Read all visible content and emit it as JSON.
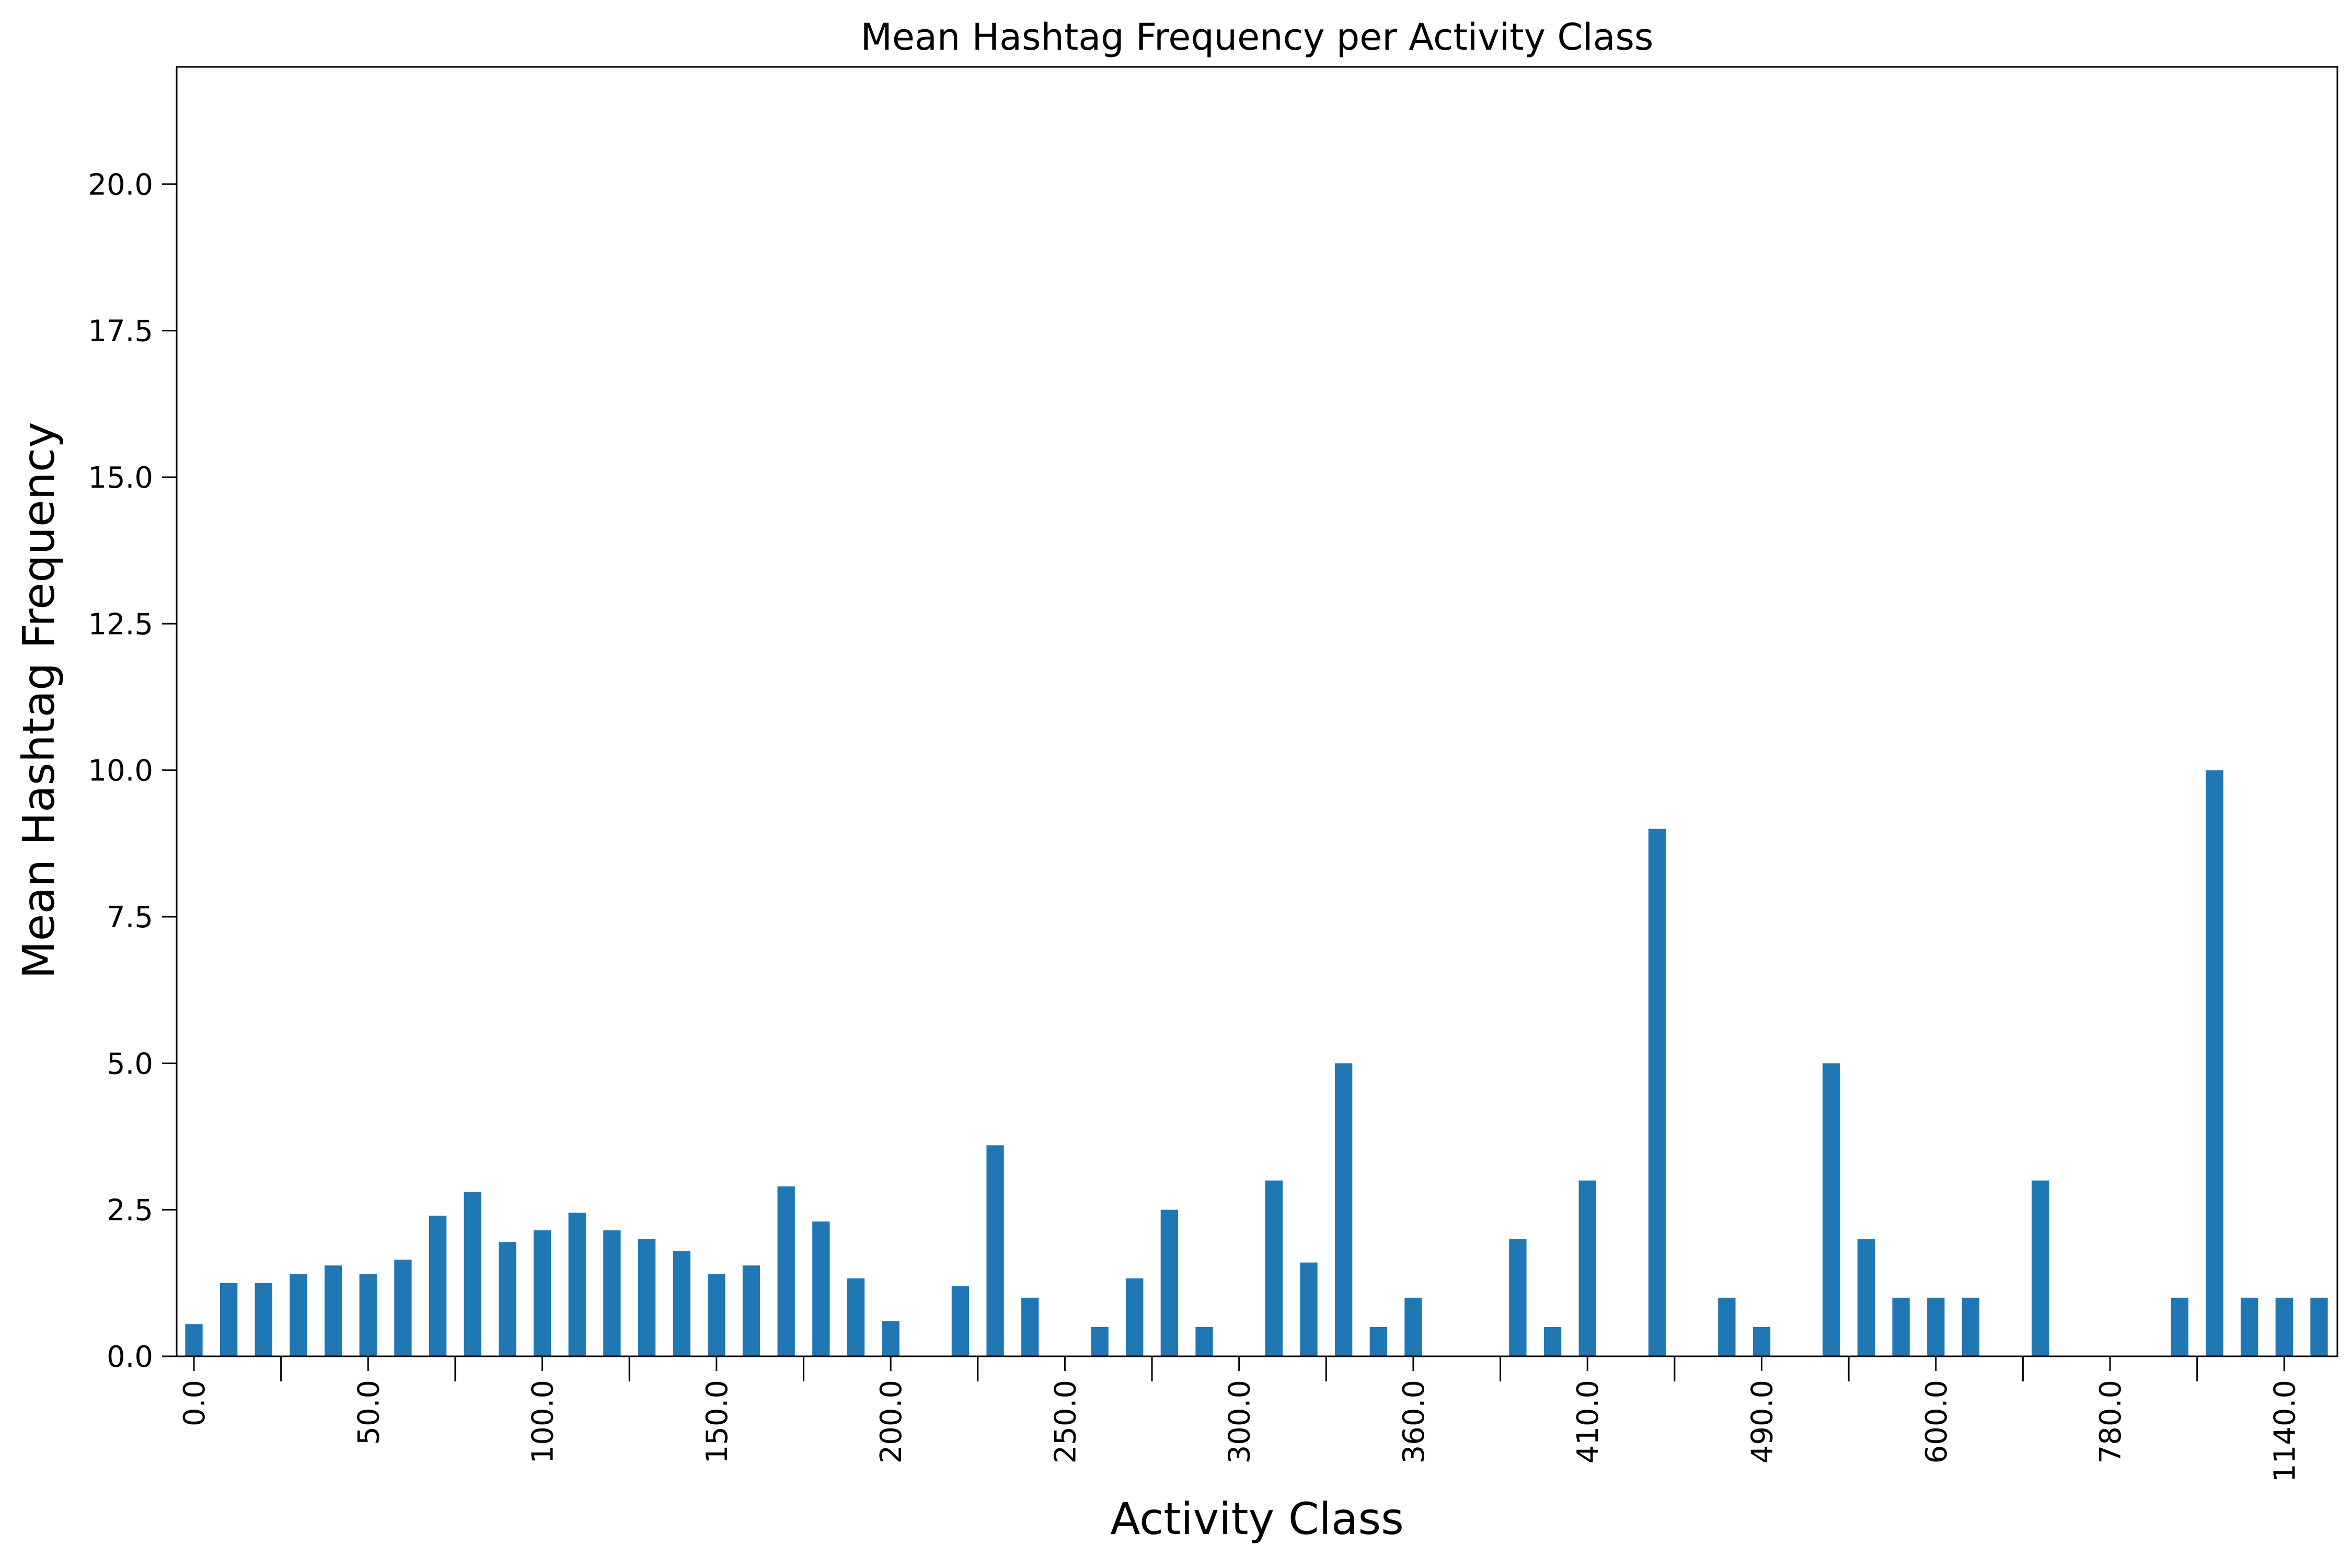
{
  "chart_data": {
    "type": "bar",
    "title": "Mean Hashtag Frequency per Activity Class",
    "xlabel": "Activity Class",
    "ylabel": "Mean Hashtag Frequency",
    "ylim": [
      0,
      22
    ],
    "yticks": [
      "0.0",
      "2.5",
      "5.0",
      "7.5",
      "10.0",
      "12.5",
      "15.0",
      "17.5",
      "20.0"
    ],
    "xtick_labels": [
      {
        "index": 0,
        "label": "0.0"
      },
      {
        "index": 5,
        "label": "50.0"
      },
      {
        "index": 10,
        "label": "100.0"
      },
      {
        "index": 15,
        "label": "150.0"
      },
      {
        "index": 20,
        "label": "200.0"
      },
      {
        "index": 25,
        "label": "250.0"
      },
      {
        "index": 30,
        "label": "300.0"
      },
      {
        "index": 35,
        "label": "360.0"
      },
      {
        "index": 40,
        "label": "410.0"
      },
      {
        "index": 45,
        "label": "490.0"
      },
      {
        "index": 50,
        "label": "600.0"
      },
      {
        "index": 55,
        "label": "780.0"
      },
      {
        "index": 60,
        "label": "1140.0"
      }
    ],
    "bar_color": "#1f77b4",
    "grid": false,
    "legend": "none",
    "values": [
      0.55,
      1.25,
      1.25,
      1.4,
      1.55,
      1.4,
      1.65,
      2.4,
      2.8,
      1.95,
      2.15,
      2.45,
      2.15,
      2.0,
      1.8,
      1.4,
      1.55,
      2.9,
      2.3,
      1.33,
      0.6,
      0,
      1.2,
      3.6,
      1.0,
      0,
      0.5,
      1.33,
      2.5,
      0.5,
      0,
      3.0,
      1.6,
      5.0,
      0.5,
      1.0,
      0,
      0,
      2.0,
      0.5,
      3.0,
      0,
      9.0,
      0,
      1.0,
      0.5,
      0,
      5.0,
      2.0,
      1.0,
      1.0,
      1.0,
      0,
      3.0,
      0,
      0,
      0,
      1.0,
      10.0,
      1.0,
      1.0,
      1.0
    ]
  }
}
